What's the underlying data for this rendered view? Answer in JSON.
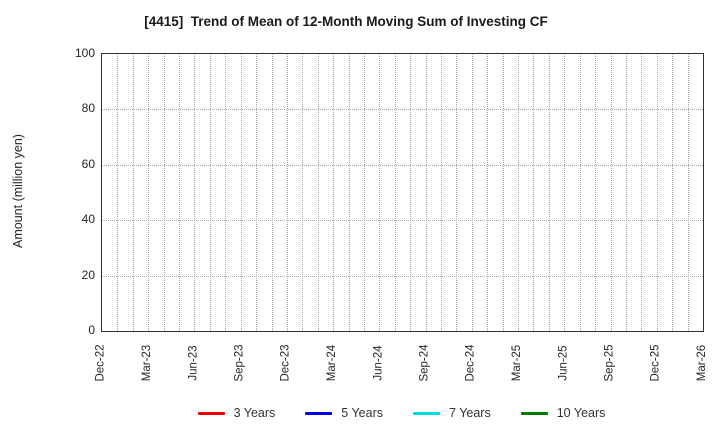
{
  "chart_data": {
    "type": "line",
    "title": "[4415]  Trend of Mean of 12-Month Moving Sum of Investing CF",
    "xlabel": "",
    "ylabel": "Amount (million yen)",
    "ylim": [
      0,
      100
    ],
    "yticks": [
      0,
      20,
      40,
      60,
      80,
      100
    ],
    "x_total_months": 39,
    "x_major_tick_labels": [
      "Dec-22",
      "Mar-23",
      "Jun-23",
      "Sep-23",
      "Dec-23",
      "Mar-24",
      "Jun-24",
      "Sep-24",
      "Dec-24",
      "Mar-25",
      "Jun-25",
      "Sep-25",
      "Dec-25",
      "Mar-26"
    ],
    "x_major_interval_months": 3,
    "grid": true,
    "grid_style": "dotted",
    "legend_position": "bottom",
    "series": [
      {
        "name": "3 Years",
        "color": "#ee0000",
        "values": []
      },
      {
        "name": "5 Years",
        "color": "#0000ee",
        "values": []
      },
      {
        "name": "7 Years",
        "color": "#00dcdc",
        "values": []
      },
      {
        "name": "10 Years",
        "color": "#007a00",
        "values": []
      }
    ],
    "note": "Plot area is empty; no data lines are drawn for any series."
  }
}
